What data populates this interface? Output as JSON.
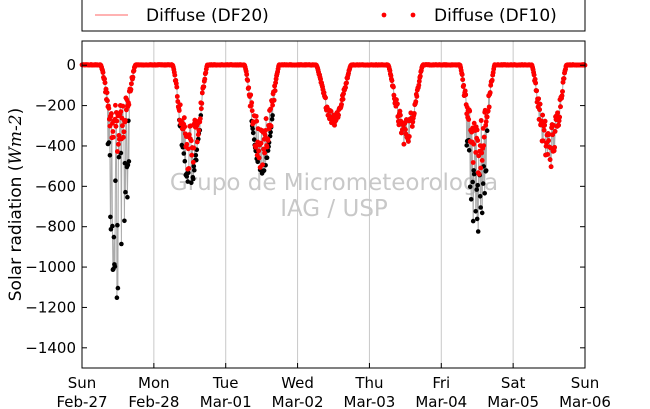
{
  "chart_data": {
    "type": "scatter",
    "title": "",
    "xlabel": "",
    "ylabel": "Solar radiation (Wm-2)",
    "ylabel_parts": {
      "text": "Solar radiation (",
      "italic": "Wm-2",
      "close": ")"
    },
    "ylim": [
      -1500,
      120
    ],
    "yticks": [
      0,
      -200,
      -400,
      -600,
      -800,
      -1000,
      -1200,
      -1400
    ],
    "ytick_labels": [
      "0",
      "−200",
      "−400",
      "−600",
      "−800",
      "−1000",
      "−1200",
      "−1400"
    ],
    "xlim_days": [
      0,
      7
    ],
    "x_ticks": [
      {
        "day": "Sun",
        "date": "Feb-27"
      },
      {
        "day": "Mon",
        "date": "Feb-28"
      },
      {
        "day": "Tue",
        "date": "Mar-01"
      },
      {
        "day": "Wed",
        "date": "Mar-02"
      },
      {
        "day": "Thu",
        "date": "Mar-03"
      },
      {
        "day": "Fri",
        "date": "Mar-04"
      },
      {
        "day": "Sat",
        "date": "Mar-05"
      },
      {
        "day": "Sun",
        "date": "Mar-06"
      }
    ],
    "grid": "vertical",
    "legend": {
      "position": "top",
      "ncol": 2
    },
    "series": [
      {
        "name": "Diffuse (DF20)",
        "color": "#000000",
        "line_color": "#aaaaaa",
        "marker": "dot"
      },
      {
        "name": "Diffuse (DF10)",
        "color": "#ff0000",
        "marker": "dot"
      }
    ],
    "daily_profile": {
      "note_units": "hours of day within each date; values in W m-2 (negative)",
      "days": [
        {
          "date": "Feb-27",
          "df10_min": -450,
          "df20_min": -1210,
          "noise": 0.55
        },
        {
          "date": "Feb-28",
          "df10_min": -540,
          "df20_min": -600,
          "noise": 0.45
        },
        {
          "date": "Mar-01",
          "df10_min": -520,
          "df20_min": -540,
          "noise": 0.45
        },
        {
          "date": "Mar-02",
          "df10_min": -300,
          "df20_min": -300,
          "noise": 0.25
        },
        {
          "date": "Mar-03",
          "df10_min": -400,
          "df20_min": -400,
          "noise": 0.35
        },
        {
          "date": "Mar-04",
          "df10_min": -560,
          "df20_min": -880,
          "noise": 0.5
        },
        {
          "date": "Mar-05",
          "df10_min": -520,
          "df20_min": -520,
          "noise": 0.45
        }
      ]
    },
    "watermark": [
      "Grupo de Micrometeorologia",
      "IAG / USP"
    ]
  }
}
